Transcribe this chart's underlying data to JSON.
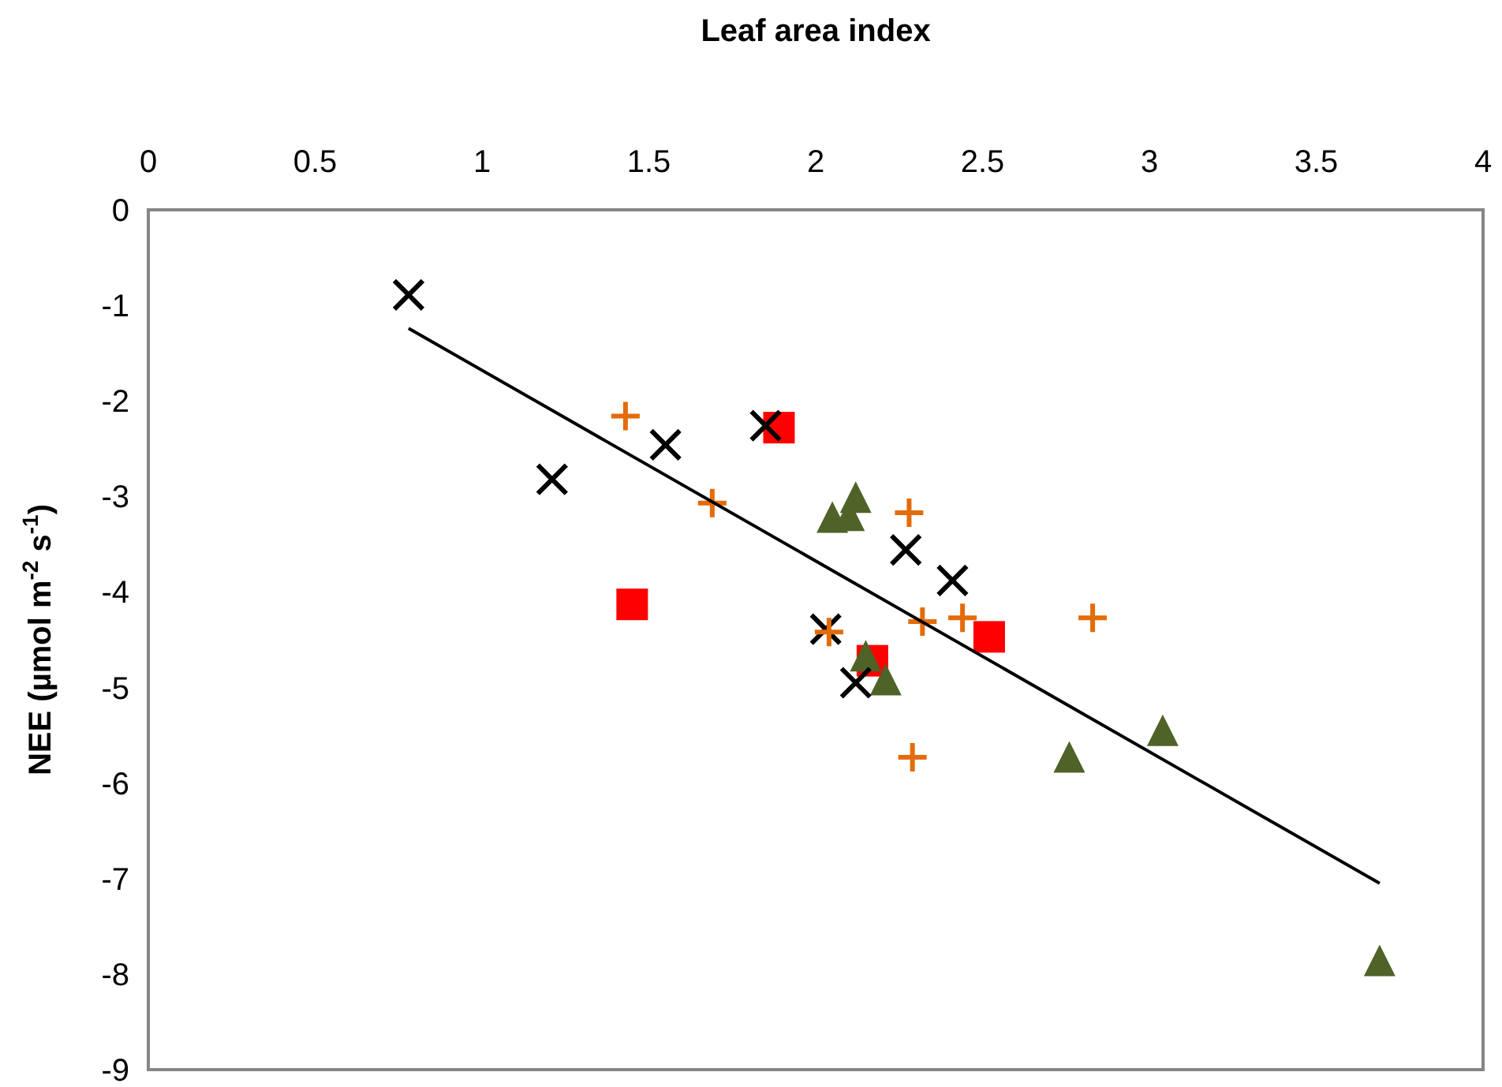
{
  "chart_data": {
    "type": "scatter",
    "xlabel": "Leaf area index",
    "ylabel": "NEE (µmol m$^{-2}$ s$^{-1}$)",
    "xlim": [
      0,
      4
    ],
    "xticks": [
      0,
      0.5,
      1,
      1.5,
      2,
      2.5,
      3,
      3.5,
      4
    ],
    "ylim": [
      -9,
      0
    ],
    "yticks": [
      -9,
      -8,
      -7,
      -6,
      -5,
      -4,
      -3,
      -2,
      -1,
      0
    ],
    "grid": false,
    "series": [
      {
        "color": "#ff0000",
        "marker": "square",
        "x": [
          1.89,
          1.45,
          2.17,
          2.52
        ],
        "values": [
          -2.28,
          -4.13,
          -4.72,
          -4.47
        ]
      },
      {
        "color": "#4f6228",
        "marker": "triangle",
        "x": [
          2.05,
          2.12,
          2.1,
          2.15,
          2.21,
          2.76,
          3.04,
          3.69
        ],
        "values": [
          -3.25,
          -3.04,
          -3.23,
          -4.7,
          -4.95,
          -5.76,
          -5.48,
          -7.89
        ]
      },
      {
        "color": "#000000",
        "marker": "cross",
        "x": [
          0.78,
          1.21,
          1.55,
          1.85,
          2.27,
          2.41,
          2.03,
          2.12
        ],
        "values": [
          -0.89,
          -2.82,
          -2.46,
          -2.26,
          -3.56,
          -3.88,
          -4.39,
          -4.95
        ]
      },
      {
        "color": "#e36c09",
        "marker": "plus",
        "x": [
          1.43,
          1.69,
          2.04,
          2.28,
          2.32,
          2.44,
          2.83,
          2.29
        ],
        "values": [
          -2.16,
          -3.07,
          -4.42,
          -3.17,
          -4.31,
          -4.27,
          -4.27,
          -5.73
        ]
      },
      {
        "type": "line",
        "color": "#000000",
        "marker": "none",
        "line_style": "solid",
        "x": [
          0.78,
          3.69
        ],
        "values": [
          -1.24,
          -7.05
        ]
      }
    ]
  }
}
